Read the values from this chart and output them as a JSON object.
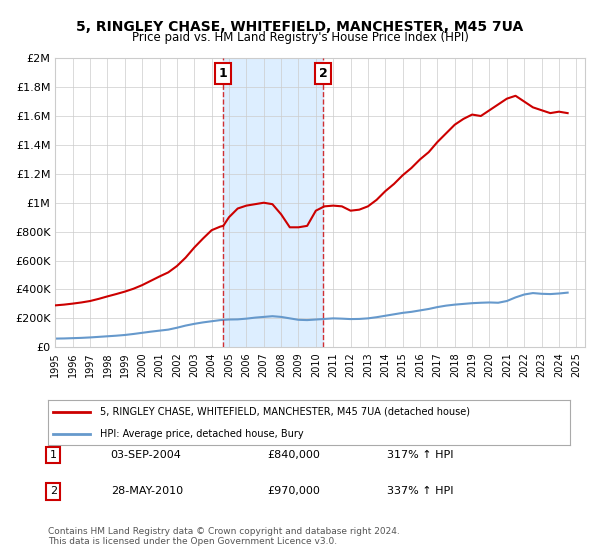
{
  "title": "5, RINGLEY CHASE, WHITEFIELD, MANCHESTER, M45 7UA",
  "subtitle": "Price paid vs. HM Land Registry's House Price Index (HPI)",
  "legend_line1": "5, RINGLEY CHASE, WHITEFIELD, MANCHESTER, M45 7UA (detached house)",
  "legend_line2": "HPI: Average price, detached house, Bury",
  "sale1_label": "1",
  "sale1_date": "03-SEP-2004",
  "sale1_price": "£840,000",
  "sale1_hpi": "317% ↑ HPI",
  "sale1_x": 2004.67,
  "sale1_y": 840000,
  "sale2_label": "2",
  "sale2_date": "28-MAY-2010",
  "sale2_price": "£970,000",
  "sale2_hpi": "337% ↑ HPI",
  "sale2_x": 2010.41,
  "sale2_y": 970000,
  "ylim": [
    0,
    2000000
  ],
  "xlim": [
    1995,
    2025.5
  ],
  "red_color": "#cc0000",
  "blue_color": "#6699cc",
  "shaded_color": "#ddeeff",
  "footnote": "Contains HM Land Registry data © Crown copyright and database right 2024.\nThis data is licensed under the Open Government Licence v3.0.",
  "hpi_data_x": [
    1995,
    1995.5,
    1996,
    1996.5,
    1997,
    1997.5,
    1998,
    1998.5,
    1999,
    1999.5,
    2000,
    2000.5,
    2001,
    2001.5,
    2002,
    2002.5,
    2003,
    2003.5,
    2004,
    2004.5,
    2005,
    2005.5,
    2006,
    2006.5,
    2007,
    2007.5,
    2008,
    2008.5,
    2009,
    2009.5,
    2010,
    2010.5,
    2011,
    2011.5,
    2012,
    2012.5,
    2013,
    2013.5,
    2014,
    2014.5,
    2015,
    2015.5,
    2016,
    2016.5,
    2017,
    2017.5,
    2018,
    2018.5,
    2019,
    2019.5,
    2020,
    2020.5,
    2021,
    2021.5,
    2022,
    2022.5,
    2023,
    2023.5,
    2024,
    2024.5
  ],
  "hpi_data_y": [
    60000,
    61000,
    63000,
    65000,
    68000,
    72000,
    76000,
    80000,
    85000,
    92000,
    100000,
    108000,
    115000,
    122000,
    135000,
    150000,
    162000,
    172000,
    180000,
    188000,
    192000,
    193000,
    198000,
    205000,
    210000,
    215000,
    210000,
    200000,
    190000,
    188000,
    192000,
    196000,
    200000,
    198000,
    195000,
    196000,
    200000,
    208000,
    218000,
    228000,
    238000,
    245000,
    255000,
    265000,
    278000,
    288000,
    295000,
    300000,
    305000,
    308000,
    310000,
    308000,
    320000,
    345000,
    365000,
    375000,
    370000,
    368000,
    372000,
    378000
  ],
  "red_data_x": [
    1995,
    1995.5,
    1996,
    1996.5,
    1997,
    1997.5,
    1998,
    1998.5,
    1999,
    1999.5,
    2000,
    2000.5,
    2001,
    2001.5,
    2002,
    2002.5,
    2003,
    2003.5,
    2004,
    2004.5,
    2004.67,
    2005,
    2005.5,
    2006,
    2006.5,
    2007,
    2007.5,
    2008,
    2008.5,
    2009,
    2009.5,
    2010,
    2010.41,
    2010.5,
    2011,
    2011.5,
    2012,
    2012.5,
    2013,
    2013.5,
    2014,
    2014.5,
    2015,
    2015.5,
    2016,
    2016.5,
    2017,
    2017.5,
    2018,
    2018.5,
    2019,
    2019.5,
    2020,
    2020.5,
    2021,
    2021.5,
    2022,
    2022.5,
    2023,
    2023.5,
    2024,
    2024.5
  ],
  "red_data_y": [
    290000,
    295000,
    302000,
    310000,
    320000,
    335000,
    352000,
    368000,
    385000,
    405000,
    430000,
    460000,
    490000,
    518000,
    562000,
    620000,
    690000,
    752000,
    810000,
    835000,
    840000,
    900000,
    960000,
    980000,
    990000,
    1000000,
    990000,
    920000,
    830000,
    830000,
    840000,
    945000,
    970000,
    975000,
    980000,
    975000,
    945000,
    952000,
    975000,
    1020000,
    1080000,
    1130000,
    1190000,
    1240000,
    1300000,
    1350000,
    1420000,
    1480000,
    1540000,
    1580000,
    1610000,
    1600000,
    1640000,
    1680000,
    1720000,
    1740000,
    1700000,
    1660000,
    1640000,
    1620000,
    1630000,
    1620000
  ]
}
